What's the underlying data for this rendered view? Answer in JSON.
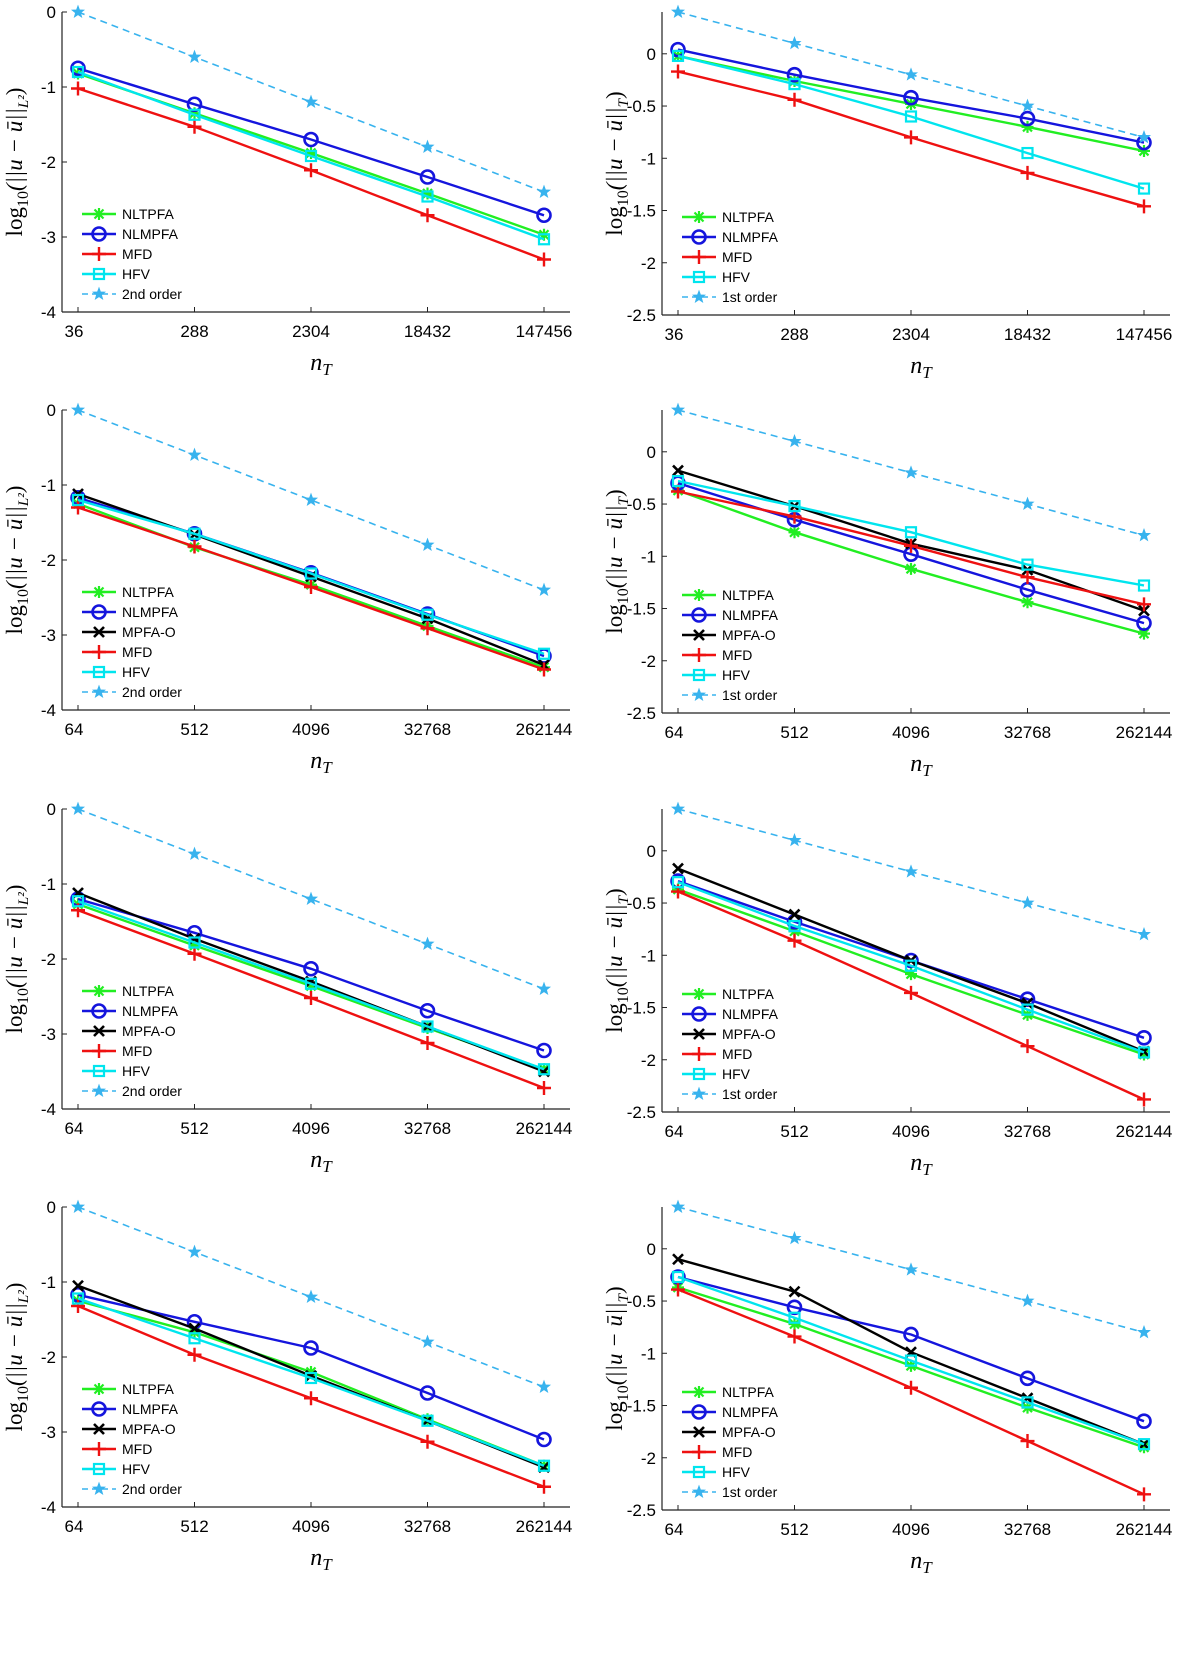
{
  "figure": {
    "description_none": ""
  },
  "colors": {
    "NLTPFA": "#22ee22",
    "NLMPFA": "#1515dd",
    "MPFA-O": "#000000",
    "MFD": "#ee1111",
    "HFV": "#00e5ee",
    "ref": "#38b3ee"
  },
  "chart_data": [
    {
      "type": "line",
      "ylabel": "log10(||u − ū||L²)",
      "xlabel": "nT",
      "categories": [
        "36",
        "288",
        "2304",
        "18432",
        "147456"
      ],
      "ylim": [
        -4,
        0
      ],
      "yticks": [
        0,
        -1,
        -2,
        -3,
        -4
      ],
      "ytick_labels": [
        "0",
        "-1",
        "-2",
        "-3",
        "-4"
      ],
      "series": [
        {
          "name": "NLTPFA",
          "values": [
            -0.82,
            -1.35,
            -1.88,
            -2.42,
            -2.97
          ]
        },
        {
          "name": "NLMPFA",
          "values": [
            -0.75,
            -1.23,
            -1.7,
            -2.2,
            -2.71
          ]
        },
        {
          "name": "MFD",
          "values": [
            -1.02,
            -1.53,
            -2.11,
            -2.71,
            -3.3
          ]
        },
        {
          "name": "HFV",
          "values": [
            -0.8,
            -1.37,
            -1.92,
            -2.46,
            -3.03
          ]
        },
        {
          "name": "2nd order",
          "values": [
            0.0,
            -0.6,
            -1.2,
            -1.8,
            -2.4
          ]
        }
      ]
    },
    {
      "type": "line",
      "ylabel": "log10(||u − ū||T)",
      "xlabel": "nT",
      "categories": [
        "36",
        "288",
        "2304",
        "18432",
        "147456"
      ],
      "ylim": [
        -2.5,
        0.4
      ],
      "yticks": [
        0,
        -0.5,
        -1,
        -1.5,
        -2,
        -2.5
      ],
      "ytick_labels": [
        "0",
        "-0.5",
        "-1",
        "-1.5",
        "-2",
        "-2.5"
      ],
      "series": [
        {
          "name": "NLTPFA",
          "values": [
            -0.02,
            -0.26,
            -0.48,
            -0.7,
            -0.93
          ]
        },
        {
          "name": "NLMPFA",
          "values": [
            0.04,
            -0.2,
            -0.42,
            -0.62,
            -0.85
          ]
        },
        {
          "name": "MFD",
          "values": [
            -0.17,
            -0.44,
            -0.8,
            -1.14,
            -1.46
          ]
        },
        {
          "name": "HFV",
          "values": [
            -0.02,
            -0.29,
            -0.6,
            -0.95,
            -1.29
          ]
        },
        {
          "name": "1st order",
          "values": [
            0.4,
            0.1,
            -0.2,
            -0.5,
            -0.8
          ]
        }
      ]
    },
    {
      "type": "line",
      "ylabel": "log10(||u − ū||L²)",
      "xlabel": "nT",
      "categories": [
        "64",
        "512",
        "4096",
        "32768",
        "262144"
      ],
      "ylim": [
        -4,
        0
      ],
      "yticks": [
        0,
        -1,
        -2,
        -3,
        -4
      ],
      "ytick_labels": [
        "0",
        "-1",
        "-2",
        "-3",
        "-4"
      ],
      "series": [
        {
          "name": "NLTPFA",
          "values": [
            -1.25,
            -1.83,
            -2.33,
            -2.88,
            -3.43
          ]
        },
        {
          "name": "NLMPFA",
          "values": [
            -1.17,
            -1.65,
            -2.17,
            -2.72,
            -3.28
          ]
        },
        {
          "name": "MPFA-O",
          "values": [
            -1.12,
            -1.66,
            -2.22,
            -2.78,
            -3.4
          ]
        },
        {
          "name": "MFD",
          "values": [
            -1.3,
            -1.82,
            -2.36,
            -2.91,
            -3.46
          ]
        },
        {
          "name": "HFV",
          "values": [
            -1.2,
            -1.65,
            -2.18,
            -2.73,
            -3.25
          ]
        },
        {
          "name": "2nd order",
          "values": [
            0.0,
            -0.6,
            -1.2,
            -1.8,
            -2.4
          ]
        }
      ]
    },
    {
      "type": "line",
      "ylabel": "log10(||u − ū||T)",
      "xlabel": "nT",
      "categories": [
        "64",
        "512",
        "4096",
        "32768",
        "262144"
      ],
      "ylim": [
        -2.5,
        0.4
      ],
      "yticks": [
        0,
        -0.5,
        -1,
        -1.5,
        -2,
        -2.5
      ],
      "ytick_labels": [
        "0",
        "-0.5",
        "-1",
        "-1.5",
        "-2",
        "-2.5"
      ],
      "series": [
        {
          "name": "NLTPFA",
          "values": [
            -0.37,
            -0.77,
            -1.12,
            -1.44,
            -1.74
          ]
        },
        {
          "name": "NLMPFA",
          "values": [
            -0.3,
            -0.65,
            -0.98,
            -1.32,
            -1.64
          ]
        },
        {
          "name": "MPFA-O",
          "values": [
            -0.18,
            -0.52,
            -0.88,
            -1.13,
            -1.52
          ]
        },
        {
          "name": "MFD",
          "values": [
            -0.38,
            -0.62,
            -0.9,
            -1.2,
            -1.46
          ]
        },
        {
          "name": "HFV",
          "values": [
            -0.28,
            -0.52,
            -0.77,
            -1.08,
            -1.28
          ]
        },
        {
          "name": "1st order",
          "values": [
            0.4,
            0.1,
            -0.2,
            -0.5,
            -0.8
          ]
        }
      ]
    },
    {
      "type": "line",
      "ylabel": "log10(||u − ū||L²)",
      "xlabel": "nT",
      "categories": [
        "64",
        "512",
        "4096",
        "32768",
        "262144"
      ],
      "ylim": [
        -4,
        0
      ],
      "yticks": [
        0,
        -1,
        -2,
        -3,
        -4
      ],
      "ytick_labels": [
        "0",
        "-1",
        "-2",
        "-3",
        "-4"
      ],
      "series": [
        {
          "name": "NLTPFA",
          "values": [
            -1.27,
            -1.82,
            -2.36,
            -2.92,
            -3.47
          ]
        },
        {
          "name": "NLMPFA",
          "values": [
            -1.2,
            -1.65,
            -2.13,
            -2.69,
            -3.22
          ]
        },
        {
          "name": "MPFA-O",
          "values": [
            -1.12,
            -1.73,
            -2.3,
            -2.9,
            -3.5
          ]
        },
        {
          "name": "MFD",
          "values": [
            -1.35,
            -1.93,
            -2.52,
            -3.12,
            -3.72
          ]
        },
        {
          "name": "HFV",
          "values": [
            -1.23,
            -1.78,
            -2.33,
            -2.9,
            -3.47
          ]
        },
        {
          "name": "2nd order",
          "values": [
            0.0,
            -0.6,
            -1.2,
            -1.8,
            -2.4
          ]
        }
      ]
    },
    {
      "type": "line",
      "ylabel": "log10(||u − ū||T)",
      "xlabel": "nT",
      "categories": [
        "64",
        "512",
        "4096",
        "32768",
        "262144"
      ],
      "ylim": [
        -2.5,
        0.4
      ],
      "yticks": [
        0,
        -0.5,
        -1,
        -1.5,
        -2,
        -2.5
      ],
      "ytick_labels": [
        "0",
        "-0.5",
        "-1",
        "-1.5",
        "-2",
        "-2.5"
      ],
      "series": [
        {
          "name": "NLTPFA",
          "values": [
            -0.37,
            -0.77,
            -1.18,
            -1.57,
            -1.95
          ]
        },
        {
          "name": "NLMPFA",
          "values": [
            -0.29,
            -0.68,
            -1.05,
            -1.42,
            -1.79
          ]
        },
        {
          "name": "MPFA-O",
          "values": [
            -0.17,
            -0.61,
            -1.05,
            -1.46,
            -1.92
          ]
        },
        {
          "name": "MFD",
          "values": [
            -0.39,
            -0.86,
            -1.36,
            -1.87,
            -2.38
          ]
        },
        {
          "name": "HFV",
          "values": [
            -0.3,
            -0.72,
            -1.1,
            -1.52,
            -1.93
          ]
        },
        {
          "name": "1st order",
          "values": [
            0.4,
            0.1,
            -0.2,
            -0.5,
            -0.8
          ]
        }
      ]
    },
    {
      "type": "line",
      "ylabel": "log10(||u − ū||L²)",
      "xlabel": "nT",
      "categories": [
        "64",
        "512",
        "4096",
        "32768",
        "262144"
      ],
      "ylim": [
        -4,
        0
      ],
      "yticks": [
        0,
        -1,
        -2,
        -3,
        -4
      ],
      "ytick_labels": [
        "0",
        "-1",
        "-2",
        "-3",
        "-4"
      ],
      "series": [
        {
          "name": "NLTPFA",
          "values": [
            -1.25,
            -1.67,
            -2.2,
            -2.83,
            -3.45
          ]
        },
        {
          "name": "NLMPFA",
          "values": [
            -1.17,
            -1.53,
            -1.88,
            -2.48,
            -3.1
          ]
        },
        {
          "name": "MPFA-O",
          "values": [
            -1.05,
            -1.62,
            -2.25,
            -2.85,
            -3.47
          ]
        },
        {
          "name": "MFD",
          "values": [
            -1.32,
            -1.97,
            -2.55,
            -3.13,
            -3.73
          ]
        },
        {
          "name": "HFV",
          "values": [
            -1.22,
            -1.75,
            -2.28,
            -2.85,
            -3.45
          ]
        },
        {
          "name": "2nd order",
          "values": [
            0.0,
            -0.6,
            -1.2,
            -1.8,
            -2.4
          ]
        }
      ]
    },
    {
      "type": "line",
      "ylabel": "log10(||u − ū||T)",
      "xlabel": "nT",
      "categories": [
        "64",
        "512",
        "4096",
        "32768",
        "262144"
      ],
      "ylim": [
        -2.5,
        0.4
      ],
      "yticks": [
        0,
        -0.5,
        -1,
        -1.5,
        -2,
        -2.5
      ],
      "ytick_labels": [
        "0",
        "-0.5",
        "-1",
        "-1.5",
        "-2",
        "-2.5"
      ],
      "series": [
        {
          "name": "NLTPFA",
          "values": [
            -0.37,
            -0.72,
            -1.12,
            -1.52,
            -1.9
          ]
        },
        {
          "name": "NLMPFA",
          "values": [
            -0.27,
            -0.56,
            -0.82,
            -1.24,
            -1.65
          ]
        },
        {
          "name": "MPFA-O",
          "values": [
            -0.1,
            -0.41,
            -0.99,
            -1.43,
            -1.87
          ]
        },
        {
          "name": "MFD",
          "values": [
            -0.39,
            -0.84,
            -1.33,
            -1.84,
            -2.35
          ]
        },
        {
          "name": "HFV",
          "values": [
            -0.27,
            -0.66,
            -1.07,
            -1.47,
            -1.87
          ]
        },
        {
          "name": "1st order",
          "values": [
            0.4,
            0.1,
            -0.2,
            -0.5,
            -0.8
          ]
        }
      ]
    }
  ]
}
